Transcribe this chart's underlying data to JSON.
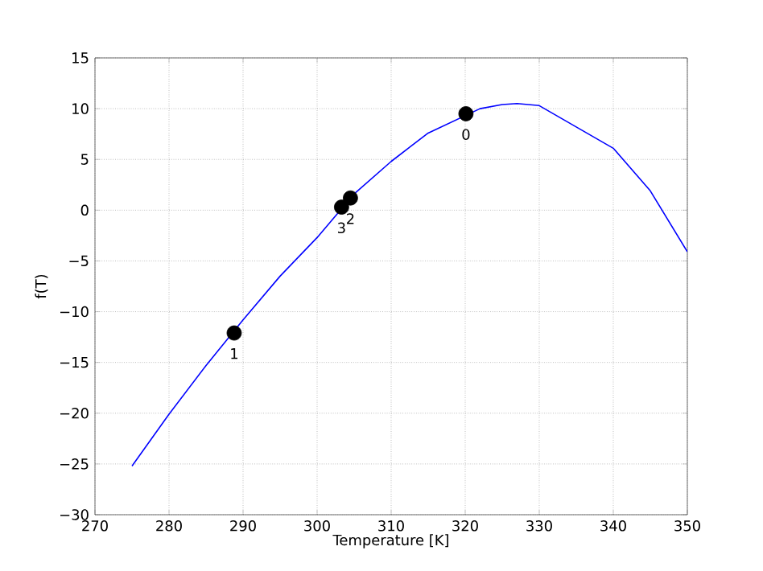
{
  "chart_data": {
    "type": "line",
    "xlabel": "Temperature [K]",
    "ylabel": "f(T)",
    "series": [
      {
        "color": "#0000ff",
        "marker": "none",
        "x": [
          275,
          280,
          285,
          290,
          295,
          300,
          305,
          310,
          315,
          322,
          325,
          327,
          330,
          335,
          340,
          345,
          350
        ],
        "values": [
          -25.2,
          -20.1,
          -15.3,
          -10.8,
          -6.5,
          -2.7,
          1.6,
          4.8,
          7.6,
          10.0,
          10.4,
          10.5,
          10.3,
          8.2,
          6.1,
          1.9,
          -4.1
        ]
      },
      {
        "type": "scatter",
        "color": "#000000",
        "marker": "circle",
        "x": [
          320.1,
          288.8,
          304.5,
          303.3
        ],
        "values": [
          9.5,
          -12.1,
          1.2,
          0.3
        ]
      }
    ],
    "annotations": [
      {
        "text": "0",
        "x": 320.1,
        "y": 9.5
      },
      {
        "text": "1",
        "x": 288.8,
        "y": -12.1
      },
      {
        "text": "2",
        "x": 304.5,
        "y": 1.2
      },
      {
        "text": "3",
        "x": 303.3,
        "y": 0.3
      }
    ],
    "xlim": [
      270,
      350
    ],
    "ylim": [
      -30,
      15
    ],
    "xticks": [
      270,
      280,
      290,
      300,
      310,
      320,
      330,
      340,
      350
    ],
    "yticks": [
      {
        "value": -30,
        "label": "−30"
      },
      {
        "value": -25,
        "label": "−25"
      },
      {
        "value": -20,
        "label": "−20"
      },
      {
        "value": -15,
        "label": "−15"
      },
      {
        "value": -10,
        "label": "−10"
      },
      {
        "value": -5,
        "label": "−5"
      },
      0,
      5,
      10,
      15
    ],
    "grid": true
  }
}
